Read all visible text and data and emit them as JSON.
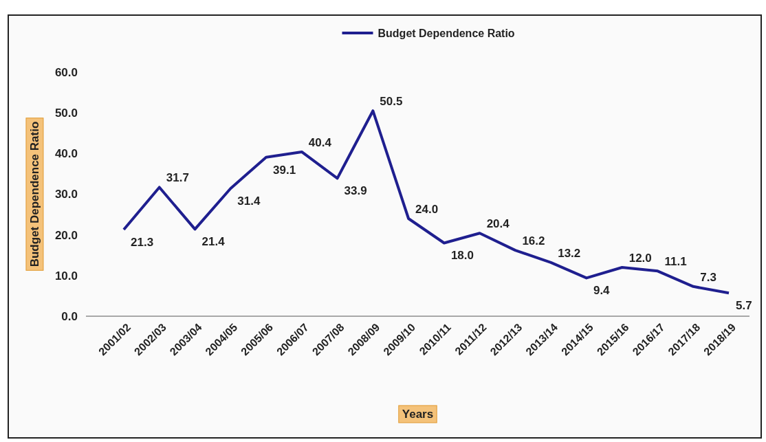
{
  "chart_data": {
    "type": "line",
    "xlabel": "Years",
    "ylabel": "Budget Dependence Ratio",
    "categories": [
      "2001/02",
      "2002/03",
      "2003/04",
      "2004/05",
      "2005/06",
      "2006/07",
      "2007/08",
      "2008/09",
      "2009/10",
      "2010/11",
      "2011/12",
      "2012/13",
      "2013/14",
      "2014/15",
      "2015/16",
      "2016/17",
      "2017/18",
      "2018/19"
    ],
    "series": [
      {
        "name": "Budget Dependence Ratio",
        "color": "#1f1f8f",
        "values": [
          21.3,
          31.7,
          21.4,
          31.4,
          39.1,
          40.4,
          33.9,
          50.5,
          24.0,
          18.0,
          20.4,
          16.2,
          13.2,
          9.4,
          12.0,
          11.1,
          7.3,
          5.7
        ],
        "value_labels": [
          "21.3",
          "31.7",
          "21.4",
          "31.4",
          "39.1",
          "40.4",
          "33.9",
          "50.5",
          "24.0",
          "18.0",
          "20.4",
          "16.2",
          "13.2",
          "9.4",
          "12.0",
          "11.1",
          "7.3",
          "5.7"
        ]
      }
    ],
    "ylim": [
      0,
      60
    ],
    "yticks": [
      {
        "value": 0,
        "label": "0.0"
      },
      {
        "value": 10,
        "label": "10.0"
      },
      {
        "value": 20,
        "label": "20.0"
      },
      {
        "value": 30,
        "label": "30.0"
      },
      {
        "value": 40,
        "label": "40.0"
      },
      {
        "value": 50,
        "label": "50.0"
      },
      {
        "value": 60,
        "label": "60.0"
      }
    ],
    "legend": "top",
    "grid": false,
    "marker": "none",
    "line_style": "solid"
  }
}
